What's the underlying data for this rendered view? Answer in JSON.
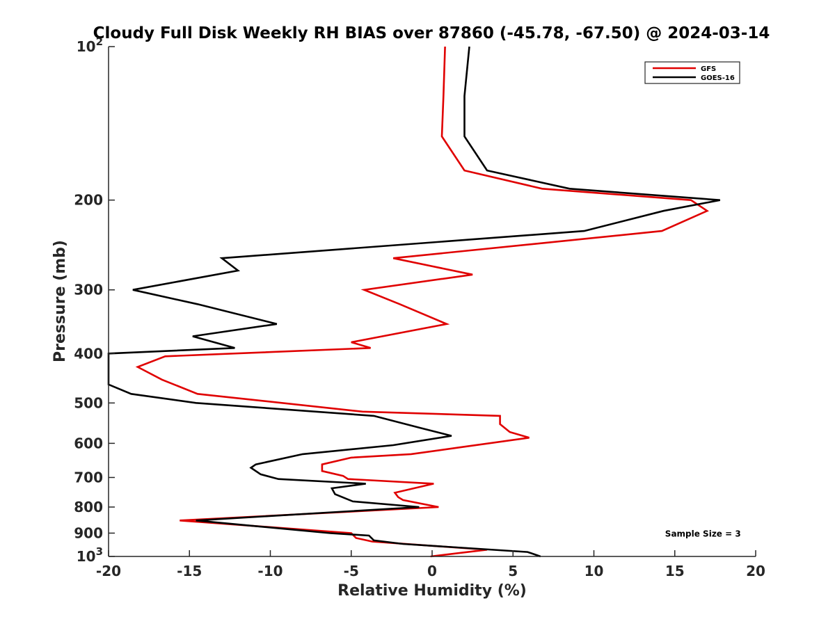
{
  "chart_data": {
    "type": "line",
    "title": "Cloudy Full Disk Weekly RH BIAS over 87860 (-45.78, -67.50) @ 2024-03-14",
    "xlabel": "Relative Humidity (%)",
    "ylabel": "Pressure (mb)",
    "xlim": [
      -20,
      20
    ],
    "ylim": [
      100,
      1000
    ],
    "y_scale": "log",
    "y_reversed": true,
    "grid": false,
    "legend_position": "top-right",
    "x_ticks": [
      "-20",
      "-15",
      "-10",
      "-5",
      "0",
      "5",
      "10",
      "15",
      "20"
    ],
    "y_ticks": [
      {
        "value": 100,
        "base": "10",
        "exp": "2"
      },
      {
        "value": 200,
        "label": "200"
      },
      {
        "value": 300,
        "label": "300"
      },
      {
        "value": 400,
        "label": "400"
      },
      {
        "value": 500,
        "label": "500"
      },
      {
        "value": 600,
        "label": "600"
      },
      {
        "value": 700,
        "label": "700"
      },
      {
        "value": 800,
        "label": "800"
      },
      {
        "value": 900,
        "label": "900"
      },
      {
        "value": 1000,
        "base": "10",
        "exp": "3"
      }
    ],
    "series": [
      {
        "name": "GFS",
        "color": "#e00000",
        "points": [
          [
            0.8,
            100
          ],
          [
            0.7,
            125
          ],
          [
            0.6,
            150
          ],
          [
            2.0,
            175
          ],
          [
            6.8,
            190
          ],
          [
            16.0,
            200
          ],
          [
            17.0,
            210
          ],
          [
            14.2,
            230
          ],
          [
            -2.4,
            260
          ],
          [
            2.5,
            280
          ],
          [
            -4.2,
            300
          ],
          [
            -2.0,
            320
          ],
          [
            0.9,
            350
          ],
          [
            -5.0,
            380
          ],
          [
            -3.8,
            390
          ],
          [
            -16.5,
            405
          ],
          [
            -18.2,
            425
          ],
          [
            -16.7,
            450
          ],
          [
            -14.5,
            480
          ],
          [
            -4.3,
            520
          ],
          [
            4.2,
            530
          ],
          [
            4.2,
            550
          ],
          [
            4.8,
            570
          ],
          [
            6.0,
            585
          ],
          [
            1.9,
            610
          ],
          [
            -1.3,
            630
          ],
          [
            -5.0,
            640
          ],
          [
            -6.8,
            660
          ],
          [
            -6.8,
            680
          ],
          [
            -5.5,
            695
          ],
          [
            -5.2,
            705
          ],
          [
            0.1,
            720
          ],
          [
            -2.3,
            750
          ],
          [
            -2.1,
            765
          ],
          [
            -1.8,
            775
          ],
          [
            0.4,
            800
          ],
          [
            -15.6,
            850
          ],
          [
            -5.0,
            900
          ],
          [
            -4.7,
            920
          ],
          [
            -3.7,
            935
          ],
          [
            3.4,
            970
          ],
          [
            -0.1,
            1000
          ]
        ]
      },
      {
        "name": "GOES-16",
        "color": "#000000",
        "points": [
          [
            2.3,
            100
          ],
          [
            2.0,
            125
          ],
          [
            2.0,
            150
          ],
          [
            3.4,
            175
          ],
          [
            8.5,
            190
          ],
          [
            17.8,
            200
          ],
          [
            14.3,
            210
          ],
          [
            9.4,
            230
          ],
          [
            -13.0,
            260
          ],
          [
            -12.0,
            275
          ],
          [
            -18.5,
            300
          ],
          [
            -14.5,
            320
          ],
          [
            -9.6,
            350
          ],
          [
            -14.8,
            370
          ],
          [
            -12.2,
            390
          ],
          [
            -20.0,
            400
          ],
          [
            -20.0,
            460
          ],
          [
            -18.6,
            480
          ],
          [
            -14.6,
            500
          ],
          [
            -3.6,
            530
          ],
          [
            -0.7,
            560
          ],
          [
            1.2,
            580
          ],
          [
            -2.4,
            605
          ],
          [
            -8.0,
            630
          ],
          [
            -10.9,
            660
          ],
          [
            -11.2,
            670
          ],
          [
            -10.6,
            690
          ],
          [
            -9.5,
            705
          ],
          [
            -4.1,
            720
          ],
          [
            -6.2,
            735
          ],
          [
            -6.0,
            755
          ],
          [
            -4.9,
            780
          ],
          [
            -0.8,
            800
          ],
          [
            -14.6,
            850
          ],
          [
            -6.3,
            900
          ],
          [
            -3.9,
            910
          ],
          [
            -3.6,
            930
          ],
          [
            -1.8,
            945
          ],
          [
            5.9,
            980
          ],
          [
            6.7,
            1000
          ]
        ]
      }
    ],
    "annotations": [
      {
        "text": "Sample Size = 3",
        "x": 14.4,
        "y": 900
      }
    ]
  }
}
